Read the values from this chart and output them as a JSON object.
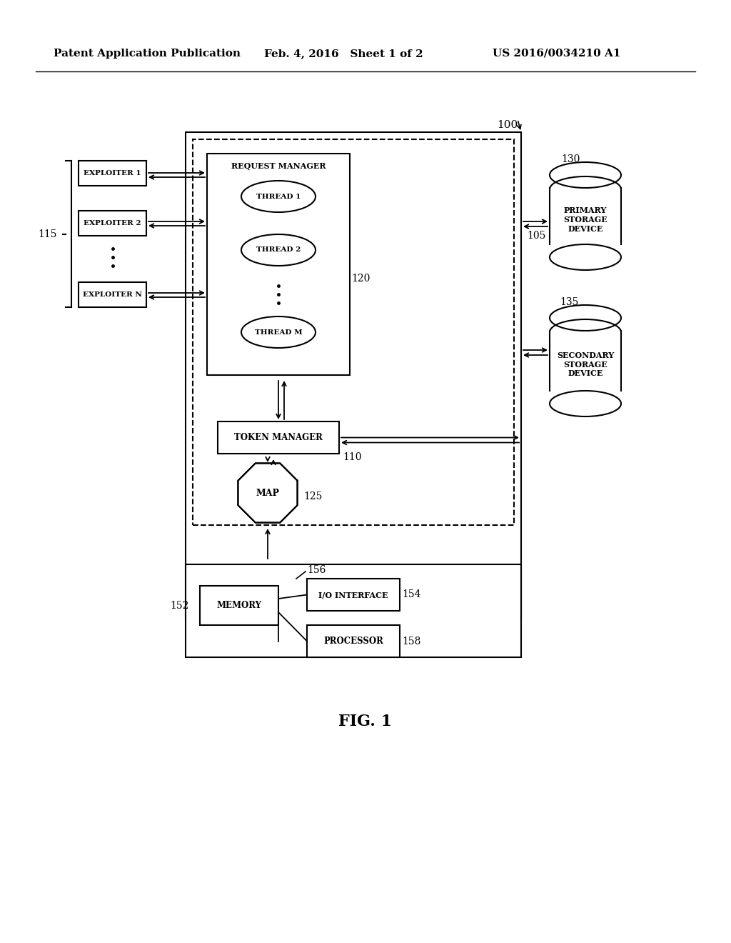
{
  "header_left": "Patent Application Publication",
  "header_mid": "Feb. 4, 2016   Sheet 1 of 2",
  "header_right": "US 2016/0034210 A1",
  "fig_label": "FIG. 1",
  "bg_color": "#ffffff",
  "line_color": "#000000",
  "label_100": "100",
  "label_115": "115",
  "label_120": "120",
  "label_105": "105",
  "label_110": "110",
  "label_125": "125",
  "label_130": "130",
  "label_135": "135",
  "label_152": "152",
  "label_154": "154",
  "label_156": "156",
  "label_158": "158"
}
